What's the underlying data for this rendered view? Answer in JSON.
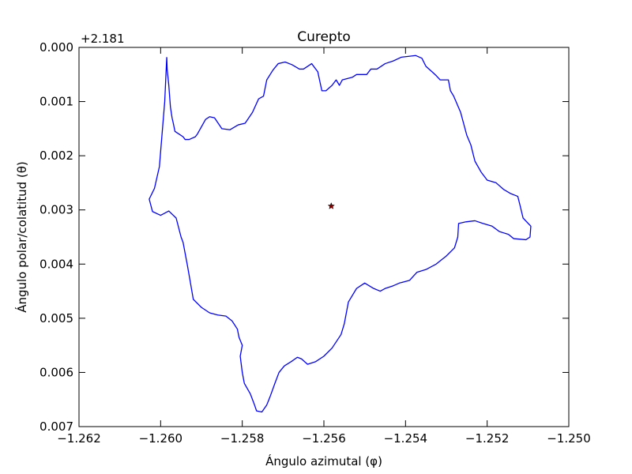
{
  "chart_data": {
    "type": "line",
    "title": "Curepto",
    "xlabel": "Ángulo azimutal (φ)",
    "ylabel": "Ángulo polar/colatitud (θ)",
    "y_offset_label": "+2.181",
    "xlim": [
      -1.262,
      -1.25
    ],
    "ylim": [
      0.007,
      0.0
    ],
    "y_inverted": true,
    "grid": false,
    "x_ticks": [
      "−1.262",
      "−1.260",
      "−1.258",
      "−1.256",
      "−1.254",
      "−1.252",
      "−1.250"
    ],
    "y_ticks": [
      "0.000",
      "0.001",
      "0.002",
      "0.003",
      "0.004",
      "0.005",
      "0.006",
      "0.007"
    ],
    "series": [
      {
        "color": "#0000ff",
        "x": [
          -1.25985,
          -1.25984,
          -1.2598,
          -1.25976,
          -1.25972,
          -1.25969,
          -1.25965,
          -1.25955,
          -1.25945,
          -1.2594,
          -1.2593,
          -1.25915,
          -1.2591,
          -1.2589,
          -1.2588,
          -1.25868,
          -1.2585,
          -1.2583,
          -1.2581,
          -1.25793,
          -1.25775,
          -1.2576,
          -1.25748,
          -1.2574,
          -1.25725,
          -1.25712,
          -1.25695,
          -1.25678,
          -1.2566,
          -1.2565,
          -1.2563,
          -1.25615,
          -1.25605,
          -1.25595,
          -1.2558,
          -1.2557,
          -1.25562,
          -1.25555,
          -1.2553,
          -1.2552,
          -1.25495,
          -1.25485,
          -1.2547,
          -1.2545,
          -1.2543,
          -1.2541,
          -1.25375,
          -1.2536,
          -1.2535,
          -1.25335,
          -1.25325,
          -1.25315,
          -1.25295,
          -1.2529,
          -1.25282,
          -1.25265,
          -1.25255,
          -1.2525,
          -1.2524,
          -1.2523,
          -1.25215,
          -1.252,
          -1.25178,
          -1.2516,
          -1.25142,
          -1.25125,
          -1.2512,
          -1.25112,
          -1.25093,
          -1.25095,
          -1.25105,
          -1.25135,
          -1.25148,
          -1.2517,
          -1.25188,
          -1.2521,
          -1.2523,
          -1.25252,
          -1.2527,
          -1.25272,
          -1.2528,
          -1.253,
          -1.25325,
          -1.2535,
          -1.25372,
          -1.2539,
          -1.25415,
          -1.2543,
          -1.2545,
          -1.25462,
          -1.25478,
          -1.255,
          -1.2551,
          -1.2552,
          -1.2554,
          -1.2555,
          -1.25558,
          -1.2558,
          -1.256,
          -1.2562,
          -1.2564,
          -1.25655,
          -1.25665,
          -1.2568,
          -1.25697,
          -1.2571,
          -1.2572,
          -1.25732,
          -1.2574,
          -1.25752,
          -1.25765,
          -1.2577,
          -1.2578,
          -1.25795,
          -1.258,
          -1.25805,
          -1.258,
          -1.25808,
          -1.25812,
          -1.25825,
          -1.2584,
          -1.2586,
          -1.2588,
          -1.259,
          -1.2592,
          -1.25928,
          -1.25935,
          -1.2594,
          -1.25945,
          -1.2595,
          -1.25962,
          -1.2598,
          -1.26,
          -1.2602,
          -1.26028,
          -1.26015,
          -1.26003,
          -1.2599,
          -1.25985
        ],
        "y": [
          0.00018,
          0.0004,
          0.0007,
          0.0011,
          0.0013,
          0.0014,
          0.00155,
          0.0016,
          0.00165,
          0.0017,
          0.0017,
          0.00165,
          0.0016,
          0.00133,
          0.00128,
          0.0013,
          0.0015,
          0.00152,
          0.00143,
          0.0014,
          0.0012,
          0.00095,
          0.0009,
          0.0006,
          0.00042,
          0.0003,
          0.00027,
          0.00032,
          0.0004,
          0.0004,
          0.0003,
          0.00045,
          0.0008,
          0.0008,
          0.0007,
          0.0006,
          0.0007,
          0.0006,
          0.00055,
          0.0005,
          0.0005,
          0.0004,
          0.0004,
          0.0003,
          0.00025,
          0.00018,
          0.00015,
          0.0002,
          0.00035,
          0.00045,
          0.00052,
          0.0006,
          0.0006,
          0.0008,
          0.0009,
          0.0012,
          0.00148,
          0.00162,
          0.0018,
          0.0021,
          0.0023,
          0.00245,
          0.0025,
          0.00262,
          0.0027,
          0.00275,
          0.0029,
          0.00315,
          0.0033,
          0.0035,
          0.00355,
          0.00353,
          0.00345,
          0.0034,
          0.0033,
          0.00325,
          0.0032,
          0.00322,
          0.00325,
          0.0035,
          0.0037,
          0.00385,
          0.004,
          0.0041,
          0.00415,
          0.0043,
          0.00435,
          0.0044,
          0.00445,
          0.0045,
          0.00445,
          0.00435,
          0.0044,
          0.00445,
          0.0047,
          0.0051,
          0.0053,
          0.00555,
          0.0057,
          0.0058,
          0.00585,
          0.00575,
          0.00572,
          0.0058,
          0.00588,
          0.006,
          0.0062,
          0.00645,
          0.0066,
          0.00673,
          0.00671,
          0.0066,
          0.0064,
          0.0062,
          0.006,
          0.0057,
          0.0055,
          0.00535,
          0.0052,
          0.00505,
          0.00496,
          0.00494,
          0.0049,
          0.0048,
          0.00465,
          0.0043,
          0.004,
          0.0038,
          0.0036,
          0.0035,
          0.00315,
          0.00302,
          0.0031,
          0.00303,
          0.0028,
          0.0026,
          0.0022,
          0.001,
          0.00018
        ]
      },
      {
        "color": "#800000",
        "marker": "star",
        "x": [
          -1.25582
        ],
        "y": [
          0.00293
        ]
      }
    ]
  }
}
